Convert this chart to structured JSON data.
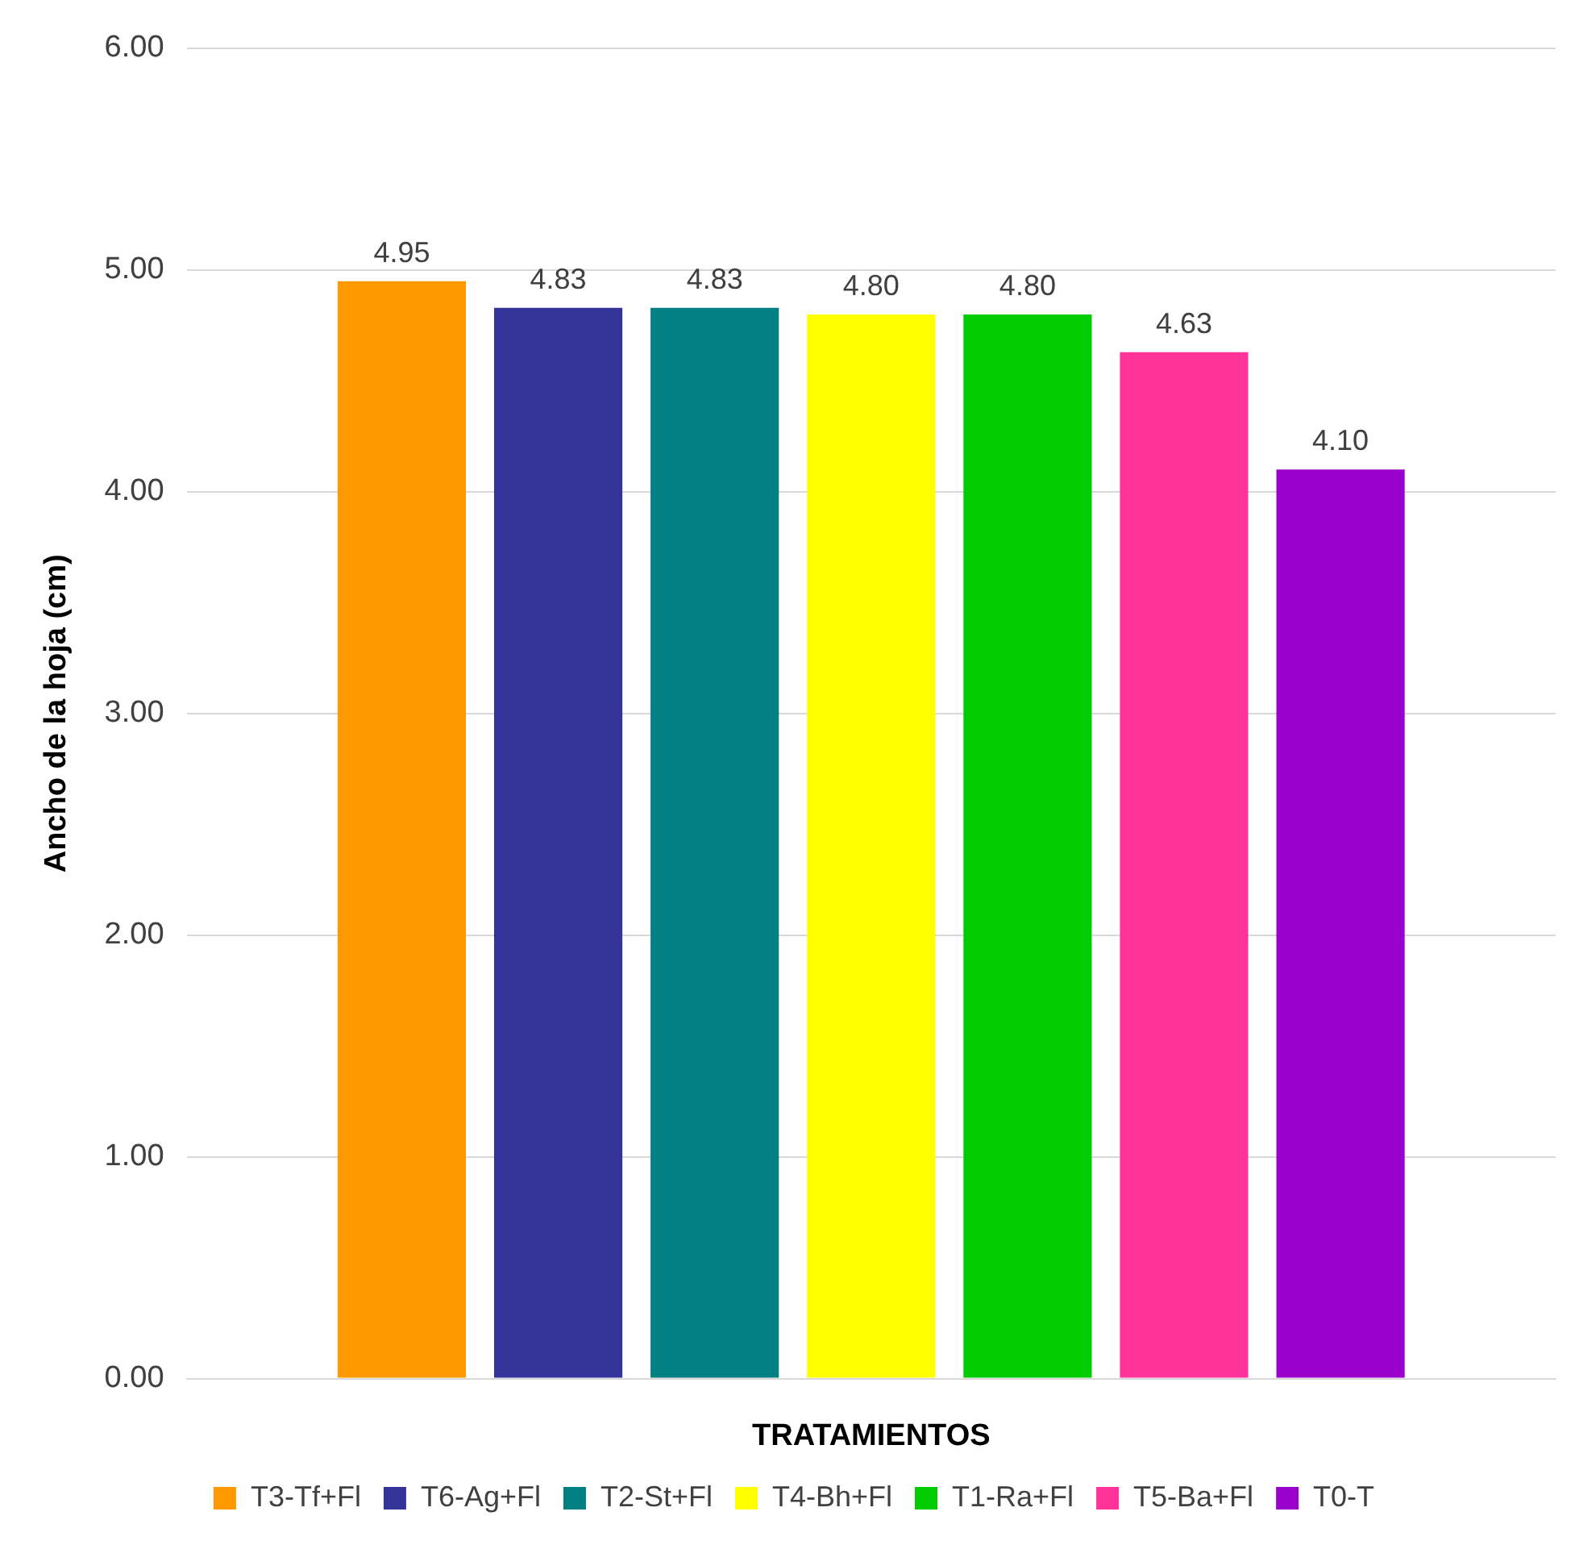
{
  "chart_data": {
    "type": "bar",
    "xlabel": "TRATAMIENTOS",
    "ylabel": "Ancho de la hoja (cm)",
    "categories": [
      null
    ],
    "series": [
      {
        "name": "T3-Tf+Fl",
        "color": "#ff9900",
        "values": [
          4.95
        ],
        "value_labels": [
          "4.95"
        ]
      },
      {
        "name": "T6-Ag+Fl",
        "color": "#333399",
        "values": [
          4.83
        ],
        "value_labels": [
          "4.83"
        ]
      },
      {
        "name": "T2-St+Fl",
        "color": "#008080",
        "values": [
          4.83
        ],
        "value_labels": [
          "4.83"
        ]
      },
      {
        "name": "T4-Bh+Fl",
        "color": "#ffff00",
        "values": [
          4.8
        ],
        "value_labels": [
          "4.80"
        ]
      },
      {
        "name": "T1-Ra+Fl",
        "color": "#00cc00",
        "values": [
          4.8
        ],
        "value_labels": [
          "4.80"
        ]
      },
      {
        "name": "T5-Ba+Fl",
        "color": "#ff3399",
        "values": [
          4.63
        ],
        "value_labels": [
          "4.63"
        ]
      },
      {
        "name": "T0-T",
        "color": "#9900cc",
        "values": [
          4.1
        ],
        "value_labels": [
          "4.10"
        ]
      }
    ],
    "ylim": [
      0,
      6
    ],
    "yticks": [
      {
        "value": 0,
        "label": "0.00"
      },
      {
        "value": 1,
        "label": "1.00"
      },
      {
        "value": 2,
        "label": "2.00"
      },
      {
        "value": 3,
        "label": "3.00"
      },
      {
        "value": 4,
        "label": "4.00"
      },
      {
        "value": 5,
        "label": "5.00"
      },
      {
        "value": 6,
        "label": "6.00"
      }
    ],
    "grid": "y",
    "legend": "bottom"
  }
}
